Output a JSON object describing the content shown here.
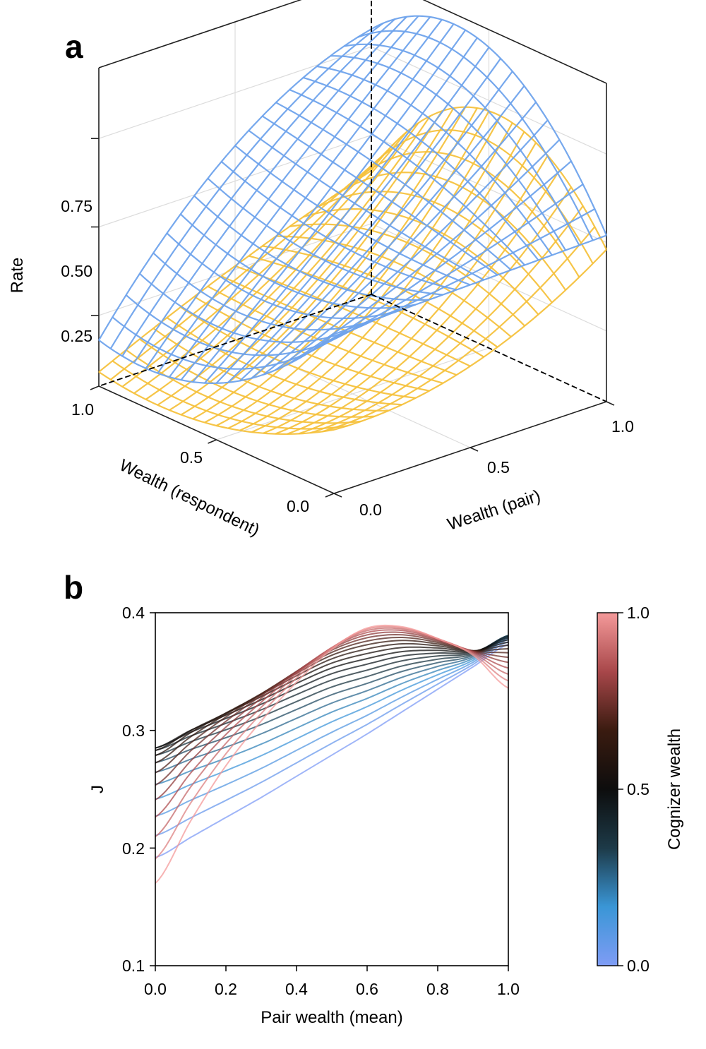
{
  "panels": [
    {
      "letter": "a"
    },
    {
      "letter": "b"
    }
  ],
  "chart_data": [
    {
      "panel": "a",
      "type": "surface",
      "zlabel": "Rate",
      "xlabel": "Wealth (pair)",
      "ylabel": "Wealth (respondent)",
      "xlim": [
        0,
        1
      ],
      "ylim": [
        0,
        1
      ],
      "zlim": [
        0.05,
        0.95
      ],
      "zticks": [
        "0.25",
        "0.50",
        "0.75"
      ],
      "xticks": [
        "0.0",
        "0.5",
        "1.0"
      ],
      "yticks": [
        "0.0",
        "0.5",
        "1.0"
      ],
      "grid": true,
      "series": [
        {
          "color": "#6fa3ec",
          "grid_values": [
            [
              0.5,
              0.51,
              0.52
            ],
            [
              0.21,
              0.52,
              0.9
            ],
            [
              0.18,
              0.6,
              0.8
            ]
          ]
        },
        {
          "color": "#f6c23e",
          "grid_values": [
            [
              0.23,
              0.28,
              0.48
            ],
            [
              0.09,
              0.28,
              0.72
            ],
            [
              0.09,
              0.26,
              0.4
            ]
          ]
        }
      ],
      "grid_note": "grid_values[i][j] at Wealth (respondent)=i/2, Wealth (pair)=j/2"
    },
    {
      "panel": "b",
      "type": "line",
      "xlabel": "Pair wealth (mean)",
      "ylabel": "J",
      "xlim": [
        0,
        1
      ],
      "ylim": [
        0.1,
        0.4
      ],
      "xticks": [
        "0.0",
        "0.2",
        "0.4",
        "0.6",
        "0.8",
        "1.0"
      ],
      "yticks": [
        "0.1",
        "0.2",
        "0.3",
        "0.4"
      ],
      "x": [
        0,
        0.1,
        0.2,
        0.3,
        0.4,
        0.5,
        0.6,
        0.7,
        0.8,
        0.9,
        1.0
      ],
      "series_labels": {
        "cognizer_wealth_0.0": [
          0.192,
          0.209,
          0.226,
          0.243,
          0.261,
          0.279,
          0.297,
          0.316,
          0.335,
          0.354,
          0.373
        ],
        "cognizer_wealth_0.5": [
          0.285,
          0.3,
          0.313,
          0.326,
          0.34,
          0.353,
          0.361,
          0.367,
          0.368,
          0.367,
          0.377
        ],
        "cognizer_wealth_1.0": [
          0.17,
          0.223,
          0.27,
          0.308,
          0.341,
          0.369,
          0.387,
          0.388,
          0.378,
          0.364,
          0.336
        ]
      },
      "series_count": 21,
      "colorbar": {
        "label": "Cognizer wealth",
        "ticks": [
          "0.0",
          "0.5",
          "1.0"
        ],
        "range": [
          0,
          1
        ],
        "colors": [
          "#7f9cf5",
          "#3a96d6",
          "#1d3a48",
          "#0d0d0d",
          "#3a1b10",
          "#a8474a",
          "#f49a9a"
        ]
      }
    }
  ]
}
